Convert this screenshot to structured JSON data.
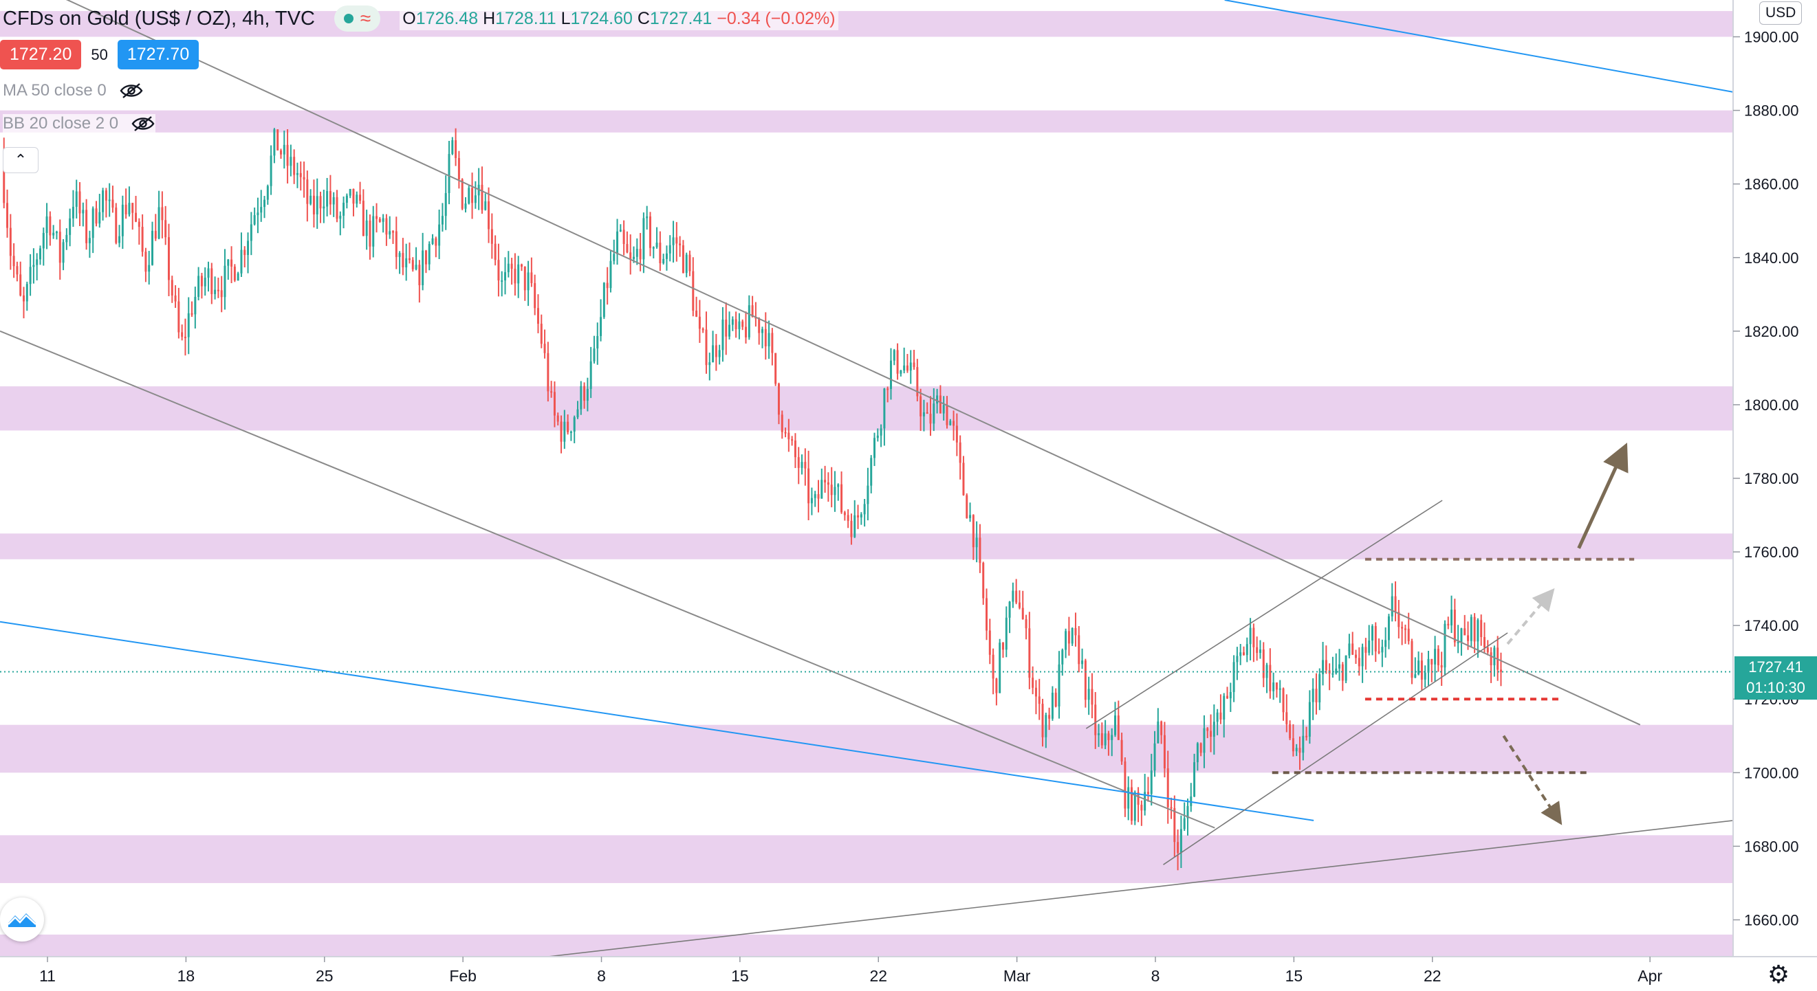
{
  "header": {
    "title": "CFDs on Gold (US$ / OZ), 4h, TVC",
    "ohlc": {
      "open_label": "O",
      "open": "1726.48",
      "high_label": "H",
      "high": "1728.11",
      "low_label": "L",
      "low": "1724.60",
      "close_label": "C",
      "close": "1727.41",
      "change": "−0.34 (−0.02%)"
    },
    "bid": "1727.20",
    "spread": "50",
    "ask": "1727.70"
  },
  "indicators": [
    {
      "label": "MA 50 close 0",
      "icon": "eye-off-icon"
    },
    {
      "label": "BB 20 close 2 0",
      "icon": "eye-off-icon"
    }
  ],
  "currency": "USD",
  "current_price": {
    "price": "1727.41",
    "countdown": "01:10:30"
  },
  "colors": {
    "up": "#26a69a",
    "down": "#ef5350",
    "zone": "#e1bee7",
    "channel": "#8a8a8a",
    "trend_blue": "#2196f3",
    "arrow_brown": "#7b6b55",
    "level_red": "#e53935"
  },
  "chart_data": {
    "type": "candlestick",
    "interval": "4h",
    "ylim": [
      1650,
      1910
    ],
    "y_ticks": [
      1660,
      1680,
      1700,
      1720,
      1740,
      1760,
      1780,
      1800,
      1820,
      1840,
      1860,
      1880,
      1900
    ],
    "y_tick_labels": [
      "1660.00",
      "1680.00",
      "1700.00",
      "1720.00",
      "1740.00",
      "1760.00",
      "1780.00",
      "1800.00",
      "1820.00",
      "1840.00",
      "1860.00",
      "1880.00",
      "1900.00"
    ],
    "x_ticks": [
      {
        "label": "11",
        "day": 11
      },
      {
        "label": "18",
        "day": 18
      },
      {
        "label": "25",
        "day": 25
      },
      {
        "label": "Feb",
        "day": 32
      },
      {
        "label": "8",
        "day": 39
      },
      {
        "label": "15",
        "day": 46
      },
      {
        "label": "22",
        "day": 53
      },
      {
        "label": "Mar",
        "day": 60
      },
      {
        "label": "8",
        "day": 67
      },
      {
        "label": "15",
        "day": 74
      },
      {
        "label": "22",
        "day": 81
      },
      {
        "label": "Apr",
        "day": 92
      }
    ],
    "x_range_days": [
      8.6,
      96.2
    ],
    "zones": [
      [
        1900,
        1907
      ],
      [
        1874,
        1880
      ],
      [
        1793,
        1805
      ],
      [
        1758,
        1765
      ],
      [
        1700,
        1713
      ],
      [
        1670,
        1683
      ],
      [
        1647,
        1656
      ]
    ],
    "price_path": [
      [
        8.8,
        1868
      ],
      [
        9.3,
        1842
      ],
      [
        9.9,
        1825
      ],
      [
        10.5,
        1838
      ],
      [
        11.2,
        1852
      ],
      [
        11.8,
        1840
      ],
      [
        12.5,
        1857
      ],
      [
        13.2,
        1845
      ],
      [
        13.9,
        1858
      ],
      [
        14.6,
        1848
      ],
      [
        15.3,
        1856
      ],
      [
        16.1,
        1838
      ],
      [
        16.8,
        1852
      ],
      [
        17.4,
        1833
      ],
      [
        17.9,
        1815
      ],
      [
        18.5,
        1828
      ],
      [
        19.2,
        1835
      ],
      [
        20.0,
        1833
      ],
      [
        20.9,
        1840
      ],
      [
        21.6,
        1852
      ],
      [
        22.2,
        1860
      ],
      [
        22.7,
        1872
      ],
      [
        23.2,
        1866
      ],
      [
        23.8,
        1863
      ],
      [
        24.5,
        1852
      ],
      [
        25.2,
        1858
      ],
      [
        25.9,
        1850
      ],
      [
        26.6,
        1856
      ],
      [
        27.4,
        1846
      ],
      [
        28.2,
        1850
      ],
      [
        29.0,
        1838
      ],
      [
        29.8,
        1834
      ],
      [
        30.6,
        1845
      ],
      [
        31.2,
        1852
      ],
      [
        31.6,
        1870
      ],
      [
        32.2,
        1855
      ],
      [
        32.9,
        1862
      ],
      [
        33.5,
        1850
      ],
      [
        34.1,
        1832
      ],
      [
        34.8,
        1836
      ],
      [
        35.5,
        1833
      ],
      [
        36.2,
        1816
      ],
      [
        36.7,
        1797
      ],
      [
        37.3,
        1792
      ],
      [
        38.0,
        1800
      ],
      [
        38.8,
        1812
      ],
      [
        39.4,
        1832
      ],
      [
        40.0,
        1845
      ],
      [
        40.7,
        1837
      ],
      [
        41.4,
        1848
      ],
      [
        42.1,
        1840
      ],
      [
        42.9,
        1845
      ],
      [
        43.6,
        1836
      ],
      [
        44.1,
        1818
      ],
      [
        44.7,
        1813
      ],
      [
        45.4,
        1822
      ],
      [
        46.1,
        1818
      ],
      [
        46.8,
        1824
      ],
      [
        47.5,
        1820
      ],
      [
        48.0,
        1805
      ],
      [
        48.5,
        1790
      ],
      [
        49.2,
        1783
      ],
      [
        49.9,
        1771
      ],
      [
        50.6,
        1783
      ],
      [
        51.3,
        1772
      ],
      [
        52.0,
        1767
      ],
      [
        52.6,
        1780
      ],
      [
        53.2,
        1795
      ],
      [
        53.7,
        1810
      ],
      [
        54.3,
        1812
      ],
      [
        55.0,
        1806
      ],
      [
        55.6,
        1794
      ],
      [
        56.3,
        1802
      ],
      [
        56.9,
        1794
      ],
      [
        57.4,
        1778
      ],
      [
        58.0,
        1765
      ],
      [
        58.5,
        1745
      ],
      [
        59.0,
        1722
      ],
      [
        59.6,
        1740
      ],
      [
        60.2,
        1750
      ],
      [
        60.8,
        1730
      ],
      [
        61.4,
        1713
      ],
      [
        62.1,
        1720
      ],
      [
        62.7,
        1737
      ],
      [
        63.3,
        1733
      ],
      [
        63.9,
        1716
      ],
      [
        64.5,
        1705
      ],
      [
        65.1,
        1715
      ],
      [
        65.7,
        1692
      ],
      [
        66.3,
        1690
      ],
      [
        66.9,
        1700
      ],
      [
        67.4,
        1713
      ],
      [
        67.8,
        1695
      ],
      [
        68.2,
        1678
      ],
      [
        68.7,
        1687
      ],
      [
        69.2,
        1705
      ],
      [
        69.8,
        1714
      ],
      [
        70.4,
        1713
      ],
      [
        71.0,
        1725
      ],
      [
        71.6,
        1733
      ],
      [
        72.1,
        1738
      ],
      [
        72.7,
        1728
      ],
      [
        73.3,
        1722
      ],
      [
        73.9,
        1712
      ],
      [
        74.4,
        1700
      ],
      [
        75.0,
        1718
      ],
      [
        75.6,
        1728
      ],
      [
        76.2,
        1725
      ],
      [
        76.9,
        1732
      ],
      [
        77.5,
        1730
      ],
      [
        78.1,
        1736
      ],
      [
        78.7,
        1730
      ],
      [
        79.2,
        1747
      ],
      [
        79.8,
        1735
      ],
      [
        80.3,
        1725
      ],
      [
        80.9,
        1733
      ],
      [
        81.5,
        1730
      ],
      [
        82.1,
        1742
      ],
      [
        82.7,
        1735
      ],
      [
        83.3,
        1740
      ],
      [
        83.9,
        1735
      ],
      [
        84.5,
        1727
      ]
    ],
    "drawings": {
      "channel_upper": [
        [
          10.0,
          1915
        ],
        [
          91.5,
          1713
        ]
      ],
      "channel_lower": [
        [
          8.6,
          1820
        ],
        [
          70.0,
          1685
        ]
      ],
      "blue_trend_upper": [
        [
          70.5,
          1910
        ],
        [
          96.2,
          1885
        ]
      ],
      "blue_trend_lower": [
        [
          8.6,
          1741
        ],
        [
          75.0,
          1687
        ]
      ],
      "wedge_upper": [
        [
          63.5,
          1712
        ],
        [
          81.5,
          1774
        ]
      ],
      "wedge_lower": [
        [
          67.4,
          1675
        ],
        [
          84.8,
          1738
        ]
      ],
      "rising_support": [
        [
          36.3,
          1650
        ],
        [
          96.2,
          1687
        ]
      ],
      "resistance_dashed": {
        "y": 1758,
        "x": [
          77.6,
          91.2
        ]
      },
      "neckline_red_dashed": {
        "y": 1720,
        "x": [
          77.6,
          87.5
        ]
      },
      "support_dashed": {
        "y": 1700,
        "x": [
          72.9,
          88.9
        ]
      },
      "arrow_up_solid": [
        [
          88.4,
          1761
        ],
        [
          90.7,
          1788
        ]
      ],
      "arrow_up_dashed": [
        [
          84.8,
          1735
        ],
        [
          87.0,
          1749
        ]
      ],
      "arrow_down_dashed": [
        [
          84.6,
          1710
        ],
        [
          87.4,
          1687
        ]
      ]
    },
    "current_price_line": 1727.41
  }
}
